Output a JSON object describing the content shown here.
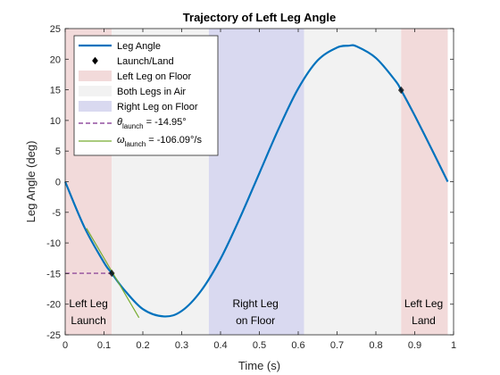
{
  "chart_data": {
    "type": "line",
    "title": "Trajectory of Left Leg Angle",
    "xlabel": "Time (s)",
    "ylabel": "Leg Angle (deg)",
    "xlim": [
      0,
      1
    ],
    "ylim": [
      -25,
      25
    ],
    "xticks": [
      0,
      0.1,
      0.2,
      0.3,
      0.4,
      0.5,
      0.6,
      0.7,
      0.8,
      0.9,
      1
    ],
    "yticks": [
      -25,
      -20,
      -15,
      -10,
      -5,
      0,
      5,
      10,
      15,
      20,
      25
    ],
    "xtick_labels": [
      "0",
      "0.1",
      "0.2",
      "0.3",
      "0.4",
      "0.5",
      "0.6",
      "0.7",
      "0.8",
      "0.9",
      "1"
    ],
    "ytick_labels": [
      "-25",
      "-20",
      "-15",
      "-10",
      "-5",
      "0",
      "5",
      "10",
      "15",
      "20",
      "25"
    ],
    "grid": false,
    "legend_position": "top-left",
    "series": [
      {
        "name": "Leg Angle",
        "color": "#0072BD",
        "x": [
          0,
          0.05,
          0.1,
          0.12,
          0.15,
          0.2,
          0.255,
          0.3,
          0.35,
          0.4,
          0.45,
          0.5,
          0.55,
          0.6,
          0.65,
          0.7,
          0.73,
          0.75,
          0.8,
          0.85,
          0.865,
          0.9,
          0.95,
          0.985
        ],
        "y": [
          0,
          -7.5,
          -13.2,
          -14.95,
          -17.5,
          -20.8,
          -22,
          -21.1,
          -17.8,
          -12.6,
          -5.9,
          1.4,
          8.7,
          15.2,
          19.8,
          21.9,
          22.2,
          22.1,
          20.2,
          16.5,
          14.95,
          10.8,
          4.5,
          0
        ]
      }
    ],
    "markers": {
      "name": "Launch/Land",
      "color": "#000000",
      "points": [
        {
          "x": 0.12,
          "y": -14.95
        },
        {
          "x": 0.865,
          "y": 14.95
        }
      ]
    },
    "regions": [
      {
        "name": "Left Leg on Floor",
        "color": "#F2DADA",
        "x0": 0,
        "x1": 0.12
      },
      {
        "name": "Both Legs in Air",
        "color": "#F2F2F2",
        "x0": 0.12,
        "x1": 0.37
      },
      {
        "name": "Right Leg on Floor",
        "color": "#D9D9F0",
        "x0": 0.37,
        "x1": 0.615
      },
      {
        "name": "Both Legs in Air",
        "color": "#F2F2F2",
        "x0": 0.615,
        "x1": 0.865
      },
      {
        "name": "Left Leg on Floor",
        "color": "#F2DADA",
        "x0": 0.865,
        "x1": 0.985
      }
    ],
    "theta_launch_line": {
      "color": "#7E2F8E",
      "symbol": "θ",
      "sub": "launch",
      "value_text": " = -14.95°",
      "y": -14.95,
      "x0": 0,
      "x1": 0.12
    },
    "omega_launch_line": {
      "color": "#77AC30",
      "symbol": "ω",
      "sub": "launch",
      "value_text": " = -106.09°/s",
      "x0": 0.055,
      "y0": -7.6,
      "x1": 0.19,
      "y1": -22.2
    },
    "annotations": [
      {
        "lines": [
          "Left Leg",
          "Launch"
        ],
        "x": 0.06,
        "y": -20.5
      },
      {
        "lines": [
          "Right Leg",
          "on Floor"
        ],
        "x": 0.49,
        "y": -20.5
      },
      {
        "lines": [
          "Left Leg",
          "Land"
        ],
        "x": 0.923,
        "y": -20.5
      }
    ]
  }
}
